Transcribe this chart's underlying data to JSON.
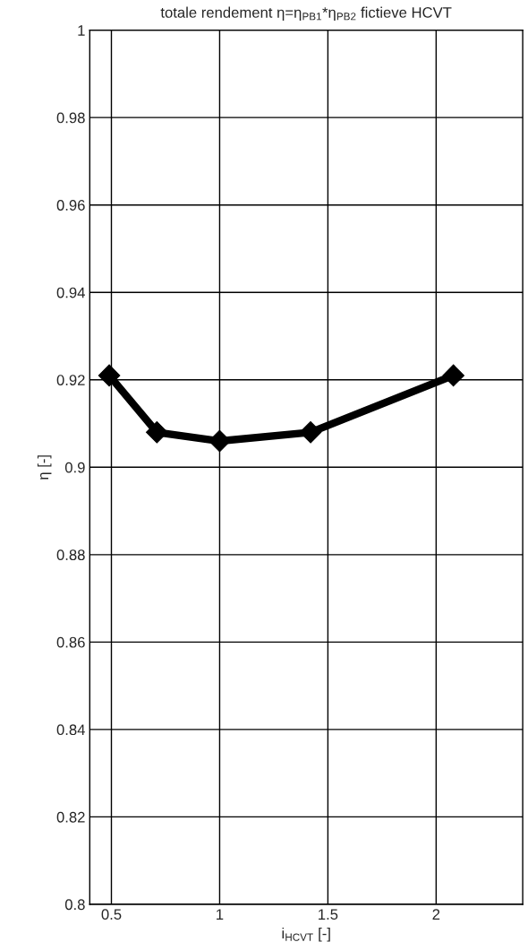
{
  "chart_data": {
    "type": "line",
    "title": "totale rendement η=η$_{PB1}$*η$_{PB2}$ fictieve HCVT",
    "xlabel": "i$_{HCVT}$ [-]",
    "ylabel": "η [-]",
    "x": [
      0.49,
      0.71,
      1.0,
      1.42,
      2.08
    ],
    "series": [
      {
        "color": "#000000",
        "values": [
          0.921,
          0.908,
          0.906,
          0.908,
          0.921
        ]
      }
    ],
    "xlim": [
      0.4,
      2.4
    ],
    "xticks": [
      0.5,
      1,
      1.5,
      2
    ],
    "ylim": [
      0.8,
      1
    ],
    "yticks": [
      0.8,
      0.82,
      0.84,
      0.86,
      0.88,
      0.9,
      0.92,
      0.94,
      0.96,
      0.98,
      1
    ],
    "grid": true,
    "marker": "diamond",
    "line_style": "solid"
  }
}
